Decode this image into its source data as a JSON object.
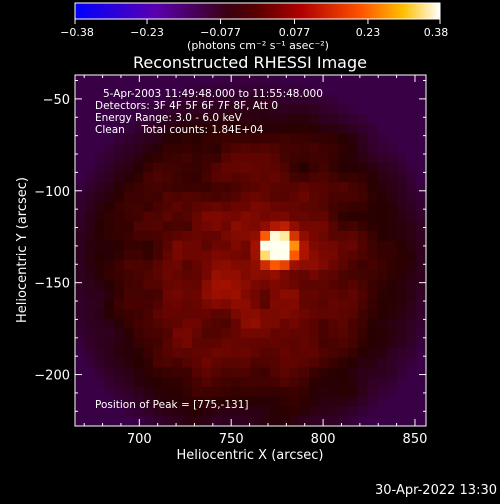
{
  "chart_data": {
    "type": "heatmap",
    "title": "Reconstructed RHESSI Image",
    "xlabel": "Heliocentric X (arcsec)",
    "ylabel": "Heliocentric Y (arcsec)",
    "xlim": [
      665,
      856
    ],
    "ylim": [
      -228,
      -37
    ],
    "x_ticks": [
      700,
      750,
      800,
      850
    ],
    "y_ticks": [
      -50,
      -100,
      -150,
      -200
    ],
    "colorbar": {
      "range": [
        -0.38,
        0.38
      ],
      "ticks": [
        -0.38,
        -0.23,
        -0.077,
        0.077,
        0.23,
        0.38
      ],
      "tick_labels": [
        "−0.38",
        "−0.23",
        "−0.077",
        "0.077",
        "0.23",
        "0.38"
      ],
      "units_label": "(photons cm⁻² s⁻¹ asec⁻²)"
    },
    "peak": {
      "x": 775,
      "y": -131
    },
    "annotations": [
      "5-Apr-2003 11:49:48.000 to 11:55:48.000",
      "Detectors: 3F 4F 5F 6F 7F 8F, Att 0",
      "Energy Range: 3.0 - 6.0 keV",
      "Clean     Total counts: 1.84E+04"
    ],
    "peak_label": "Position of Peak = [775,-131]"
  },
  "footer": {
    "timestamp": "30-Apr-2022 13:30"
  }
}
